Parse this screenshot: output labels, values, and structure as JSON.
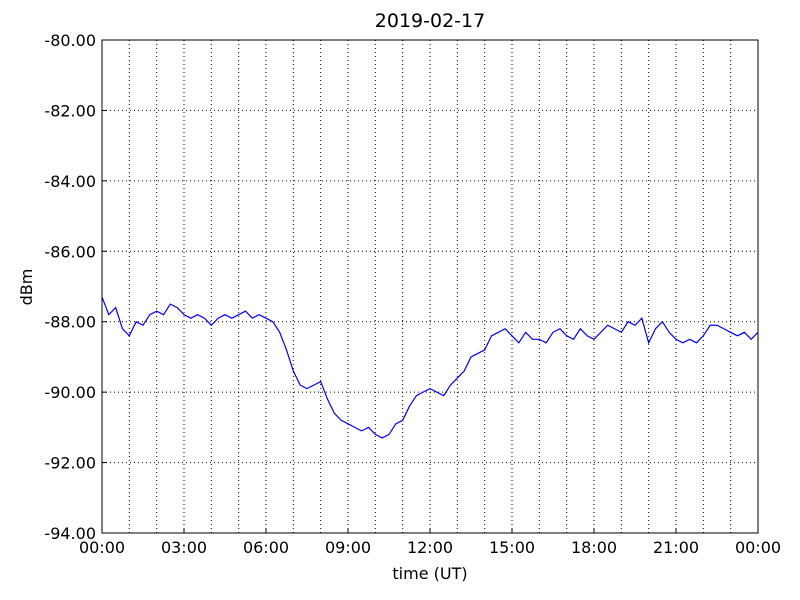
{
  "chart_data": {
    "type": "line",
    "title": "2019-02-17",
    "x_label": "time (UT)",
    "y_label": "dBm",
    "x": [
      0,
      0.25,
      0.5,
      0.75,
      1,
      1.25,
      1.5,
      1.75,
      2,
      2.25,
      2.5,
      2.75,
      3,
      3.25,
      3.5,
      3.75,
      4,
      4.25,
      4.5,
      4.75,
      5,
      5.25,
      5.5,
      5.75,
      6,
      6.25,
      6.5,
      6.75,
      7,
      7.25,
      7.5,
      7.75,
      8,
      8.25,
      8.5,
      8.75,
      9,
      9.25,
      9.5,
      9.75,
      10,
      10.25,
      10.5,
      10.75,
      11,
      11.25,
      11.5,
      11.75,
      12,
      12.25,
      12.5,
      12.75,
      13,
      13.25,
      13.5,
      13.75,
      14,
      14.25,
      14.5,
      14.75,
      15,
      15.25,
      15.5,
      15.75,
      16,
      16.25,
      16.5,
      16.75,
      17,
      17.25,
      17.5,
      17.75,
      18,
      18.25,
      18.5,
      18.75,
      19,
      19.25,
      19.5,
      19.75,
      20,
      20.25,
      20.5,
      20.75,
      21,
      21.25,
      21.5,
      21.75,
      22,
      22.25,
      22.5,
      22.75,
      23,
      23.25,
      23.5,
      23.75,
      24
    ],
    "series": [
      {
        "name": "dBm",
        "color": "#0000ff",
        "values": [
          -87.3,
          -87.8,
          -87.6,
          -88.2,
          -88.4,
          -88.0,
          -88.1,
          -87.8,
          -87.7,
          -87.8,
          -87.5,
          -87.6,
          -87.8,
          -87.9,
          -87.8,
          -87.9,
          -88.1,
          -87.9,
          -87.8,
          -87.9,
          -87.8,
          -87.7,
          -87.9,
          -87.8,
          -87.9,
          -88.0,
          -88.3,
          -88.8,
          -89.4,
          -89.8,
          -89.9,
          -89.8,
          -89.7,
          -90.2,
          -90.6,
          -90.8,
          -90.9,
          -91.0,
          -91.1,
          -91.0,
          -91.2,
          -91.3,
          -91.2,
          -90.9,
          -90.8,
          -90.4,
          -90.1,
          -90.0,
          -89.9,
          -90.0,
          -90.1,
          -89.8,
          -89.6,
          -89.4,
          -89.0,
          -88.9,
          -88.8,
          -88.4,
          -88.3,
          -88.2,
          -88.4,
          -88.6,
          -88.3,
          -88.5,
          -88.5,
          -88.6,
          -88.3,
          -88.2,
          -88.4,
          -88.5,
          -88.2,
          -88.4,
          -88.5,
          -88.3,
          -88.1,
          -88.2,
          -88.3,
          -88.0,
          -88.1,
          -87.9,
          -88.6,
          -88.2,
          -88.0,
          -88.3,
          -88.5,
          -88.6,
          -88.5,
          -88.6,
          -88.4,
          -88.1,
          -88.1,
          -88.2,
          -88.3,
          -88.4,
          -88.3,
          -88.5,
          -88.3
        ]
      }
    ],
    "xlim": [
      0,
      24
    ],
    "xticks": [
      {
        "value": 0,
        "label": "00:00"
      },
      {
        "value": 3,
        "label": "03:00"
      },
      {
        "value": 6,
        "label": "06:00"
      },
      {
        "value": 9,
        "label": "09:00"
      },
      {
        "value": 12,
        "label": "12:00"
      },
      {
        "value": 15,
        "label": "15:00"
      },
      {
        "value": 18,
        "label": "18:00"
      },
      {
        "value": 21,
        "label": "21:00"
      },
      {
        "value": 24,
        "label": "00:00"
      }
    ],
    "x_minor_ticks": [
      1,
      2,
      4,
      5,
      7,
      8,
      10,
      11,
      13,
      14,
      16,
      17,
      19,
      20,
      22,
      23
    ],
    "ylim": [
      -94,
      -80
    ],
    "yticks": [
      {
        "value": -94,
        "label": "-94.00"
      },
      {
        "value": -92,
        "label": "-92.00"
      },
      {
        "value": -90,
        "label": "-90.00"
      },
      {
        "value": -88,
        "label": "-88.00"
      },
      {
        "value": -86,
        "label": "-86.00"
      },
      {
        "value": -84,
        "label": "-84.00"
      },
      {
        "value": -82,
        "label": "-82.00"
      },
      {
        "value": -80,
        "label": "-80.00"
      }
    ],
    "grid": true
  }
}
